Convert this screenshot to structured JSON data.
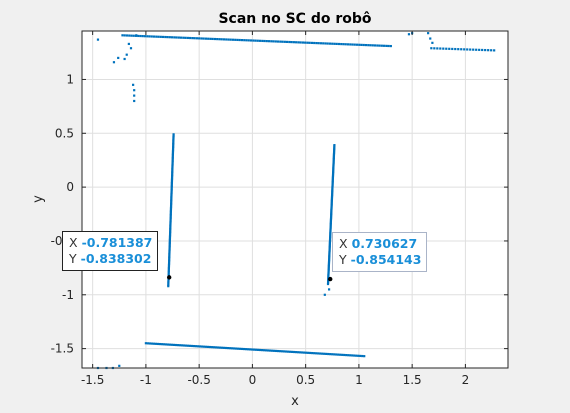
{
  "chart_data": {
    "type": "scatter",
    "title": "Scan no SC do robô",
    "xlabel": "x",
    "ylabel": "y",
    "xlim": [
      -1.6,
      2.4
    ],
    "ylim": [
      -1.68,
      1.45
    ],
    "grid": true,
    "xticks": [
      "-1.5",
      "-1",
      "-0.5",
      "0",
      "0.5",
      "1",
      "1.5",
      "2"
    ],
    "xtick_values": [
      -1.5,
      -1,
      -0.5,
      0,
      0.5,
      1,
      1.5,
      2
    ],
    "yticks": [
      "-1.5",
      "-1",
      "-0.5",
      "0",
      "0.5",
      "1"
    ],
    "ytick_values": [
      -1.5,
      -1,
      -0.5,
      0,
      0.5,
      1
    ],
    "marker_color": "#0072bd",
    "segments": [
      {
        "from": [
          -1.22,
          1.41
        ],
        "to": [
          1.3,
          1.31
        ],
        "n": 120
      },
      {
        "from": [
          -1.0,
          -1.45
        ],
        "to": [
          1.05,
          -1.57
        ],
        "n": 110
      },
      {
        "from": [
          -0.79,
          -0.92
        ],
        "to": [
          -0.74,
          0.49
        ],
        "n": 110
      },
      {
        "from": [
          0.71,
          -0.9
        ],
        "to": [
          0.77,
          0.39
        ],
        "n": 110
      },
      {
        "from": [
          1.68,
          1.29
        ],
        "to": [
          2.27,
          1.27
        ],
        "n": 22
      }
    ],
    "points": [
      [
        -1.45,
        1.37
      ],
      [
        -1.3,
        1.16
      ],
      [
        -1.26,
        1.2
      ],
      [
        -1.2,
        1.19
      ],
      [
        -1.18,
        1.23
      ],
      [
        -1.16,
        1.33
      ],
      [
        -1.14,
        1.29
      ],
      [
        -1.12,
        0.95
      ],
      [
        -1.11,
        0.9
      ],
      [
        -1.11,
        0.85
      ],
      [
        -1.11,
        0.8
      ],
      [
        -1.09,
        1.41
      ],
      [
        1.47,
        1.42
      ],
      [
        1.5,
        1.43
      ],
      [
        1.65,
        1.43
      ],
      [
        1.67,
        1.38
      ],
      [
        1.69,
        1.34
      ],
      [
        -1.45,
        -1.68
      ],
      [
        -1.37,
        -1.68
      ],
      [
        -1.31,
        -1.68
      ],
      [
        -1.25,
        -1.66
      ],
      [
        0.68,
        -1.0
      ],
      [
        0.72,
        -0.95
      ]
    ],
    "datatips": [
      {
        "x": "-0.781387",
        "y": "-0.838302",
        "px": -0.781387,
        "py": -0.838302
      },
      {
        "x": "0.730627",
        "y": "-0.854143",
        "px": 0.730627,
        "py": -0.854143
      }
    ],
    "datatip_x_key": "X",
    "datatip_y_key": "Y"
  }
}
